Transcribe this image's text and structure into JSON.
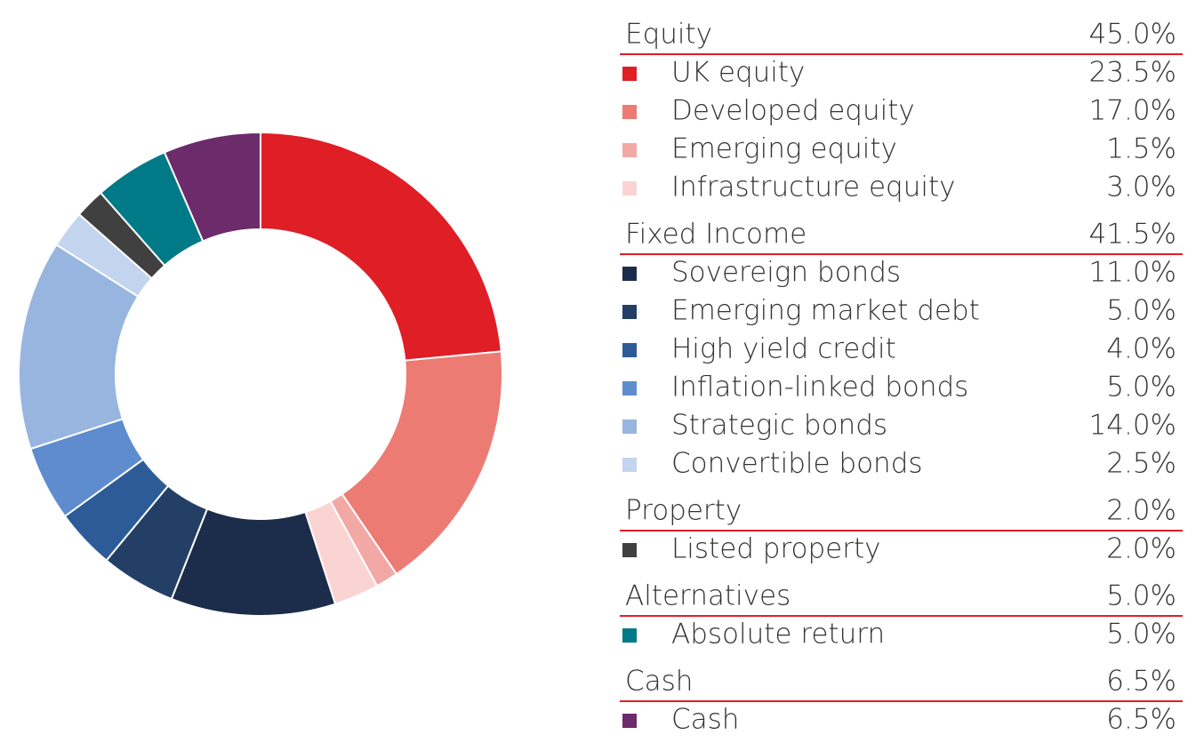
{
  "chart_data": {
    "type": "pie",
    "groups": [
      {
        "name": "Equity",
        "total": 45.0,
        "total_label": "45.0%",
        "categories": [
          "UK equity",
          "Developed equity",
          "Emerging equity",
          "Infrastructure equity"
        ],
        "values": [
          23.5,
          17.0,
          1.5,
          3.0
        ],
        "value_labels": [
          "23.5%",
          "17.0%",
          "1.5%",
          "3.0%"
        ],
        "colors": [
          "#e01e26",
          "#ec7b74",
          "#f2a9a5",
          "#fad4d2"
        ]
      },
      {
        "name": "Fixed Income",
        "total": 41.5,
        "total_label": "41.5%",
        "categories": [
          "Sovereign bonds",
          "Emerging market debt",
          "High yield credit",
          "Inflation-linked bonds",
          "Strategic bonds",
          "Convertible bonds"
        ],
        "values": [
          11.0,
          5.0,
          4.0,
          5.0,
          14.0,
          2.5
        ],
        "value_labels": [
          "11.0%",
          "5.0%",
          "4.0%",
          "5.0%",
          "14.0%",
          "2.5%"
        ],
        "colors": [
          "#1b2d4b",
          "#233f66",
          "#2d5b98",
          "#5f8ccf",
          "#98b5df",
          "#c2d4ee"
        ]
      },
      {
        "name": "Property",
        "total": 2.0,
        "total_label": "2.0%",
        "categories": [
          "Listed property"
        ],
        "values": [
          2.0
        ],
        "value_labels": [
          "2.0%"
        ],
        "colors": [
          "#404040"
        ]
      },
      {
        "name": "Alternatives",
        "total": 5.0,
        "total_label": "5.0%",
        "categories": [
          "Absolute return"
        ],
        "values": [
          5.0
        ],
        "value_labels": [
          "5.0%"
        ],
        "colors": [
          "#007a87"
        ]
      },
      {
        "name": "Cash",
        "total": 6.5,
        "total_label": "6.5%",
        "categories": [
          "Cash"
        ],
        "values": [
          6.5
        ],
        "value_labels": [
          "6.5%"
        ],
        "colors": [
          "#6c2b6a"
        ]
      }
    ]
  }
}
